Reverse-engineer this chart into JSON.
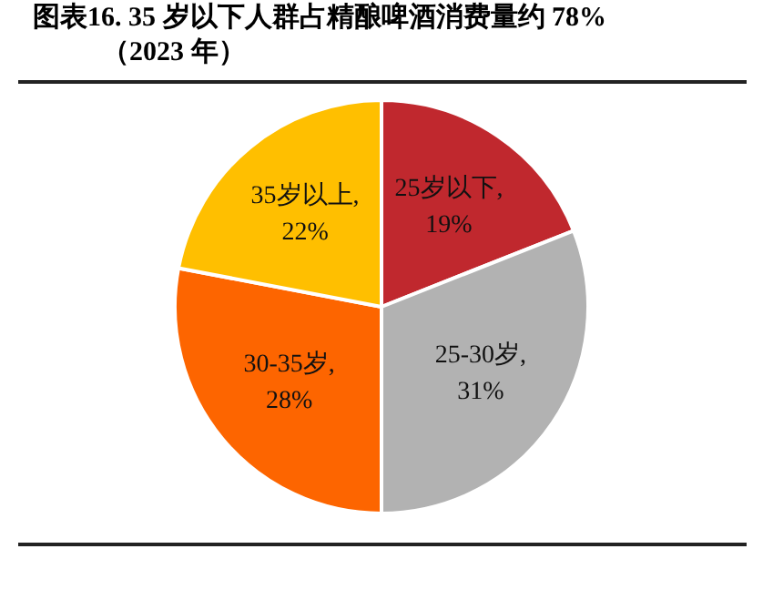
{
  "chart_data": {
    "type": "pie",
    "title": "图表16. 35 岁以下人群占精酿啤酒消费量约 78%",
    "subtitle": "（2023 年）",
    "categories": [
      "25岁以下",
      "25-30岁",
      "30-35岁",
      "35岁以上"
    ],
    "values": [
      19,
      31,
      28,
      22
    ],
    "colors": [
      "#c0282e",
      "#b2b2b2",
      "#fd6500",
      "#ffbf00"
    ],
    "value_labels": [
      ", 19%",
      ", 31%",
      ", 28%",
      ", 22%"
    ],
    "legend": false
  }
}
